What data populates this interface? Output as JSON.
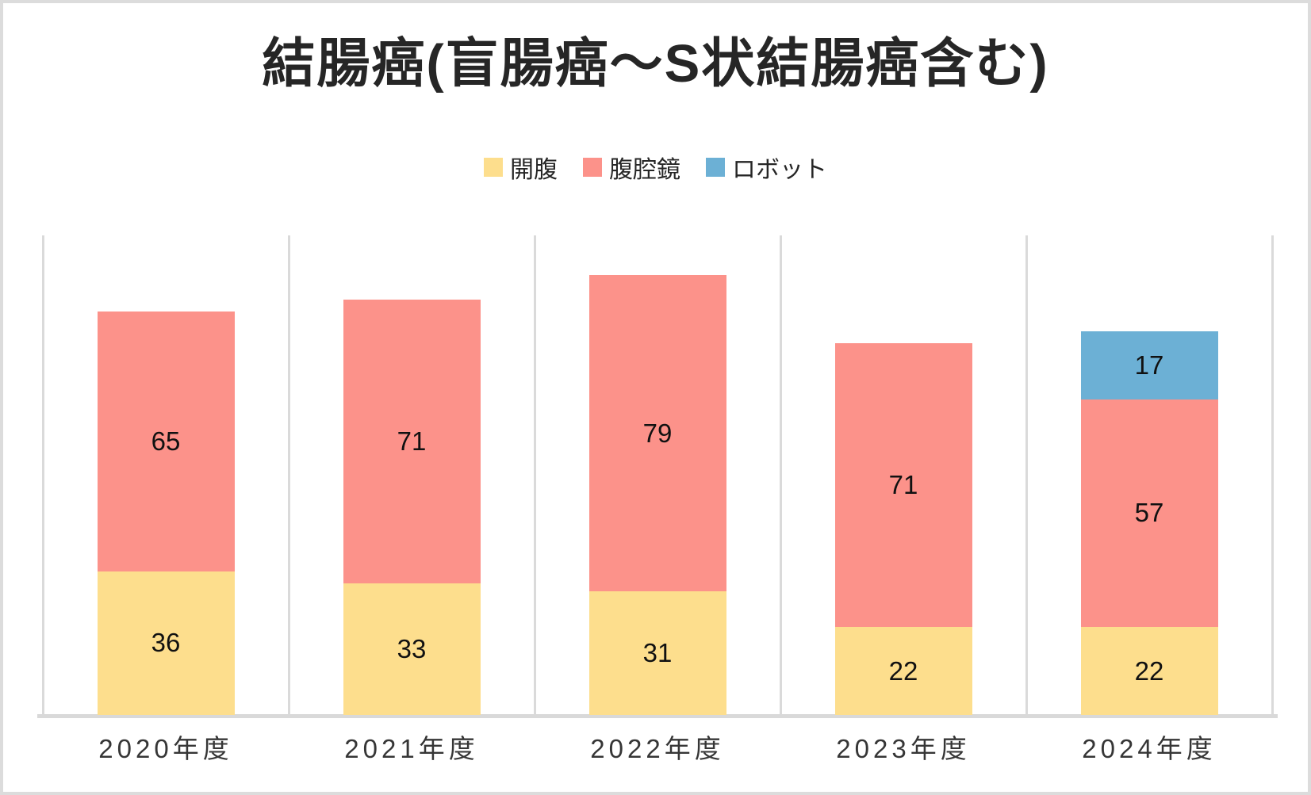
{
  "chart_data": {
    "type": "bar",
    "stacked": true,
    "title": "結腸癌(盲腸癌～S状結腸癌含む)",
    "categories": [
      "2020年度",
      "2021年度",
      "2022年度",
      "2023年度",
      "2024年度"
    ],
    "series": [
      {
        "name": "開腹",
        "color": "#FDDE8D",
        "values": [
          36,
          33,
          31,
          22,
          22
        ]
      },
      {
        "name": "腹腔鏡",
        "color": "#FC928A",
        "values": [
          65,
          71,
          79,
          71,
          57
        ]
      },
      {
        "name": "ロボット",
        "color": "#6CB0D5",
        "values": [
          0,
          0,
          0,
          0,
          17
        ]
      }
    ],
    "ylim": [
      0,
      120
    ],
    "xlabel": "",
    "ylabel": "",
    "grid": "vertical-category-separators",
    "gridline_color": "#dadada",
    "axis_color": "#d9d9d9",
    "legend_position": "top",
    "label_color": "#111111",
    "frame_color": "#dcdcdc"
  }
}
